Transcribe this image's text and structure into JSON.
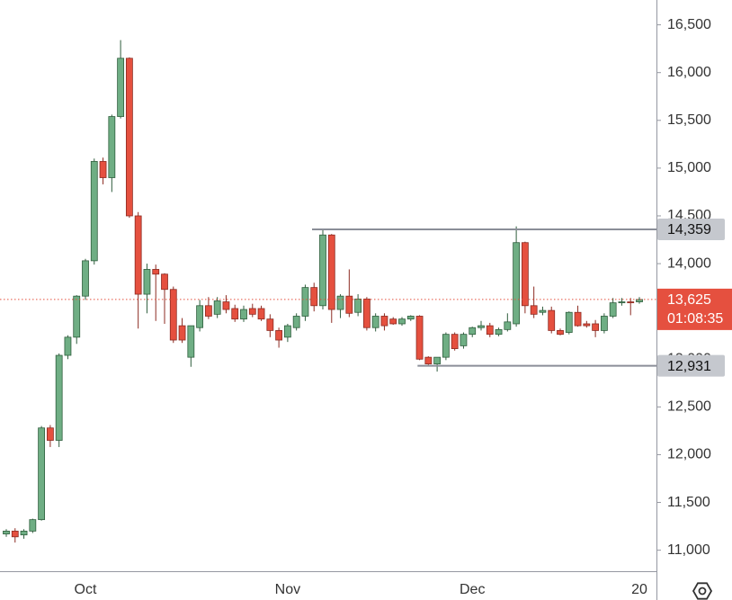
{
  "chart_data": {
    "type": "candlestick",
    "categories": [
      null,
      null,
      null,
      null,
      null,
      null,
      null,
      null,
      null,
      "Oct",
      null,
      null,
      null,
      null,
      null,
      null,
      null,
      null,
      null,
      null,
      null,
      null,
      null,
      null,
      null,
      null,
      null,
      null,
      null,
      null,
      null,
      null,
      "Nov",
      null,
      null,
      null,
      null,
      null,
      null,
      null,
      null,
      null,
      null,
      null,
      null,
      null,
      null,
      null,
      null,
      null,
      null,
      null,
      null,
      "Dec",
      null,
      null,
      null,
      null,
      null,
      null,
      null,
      null,
      null,
      null,
      null,
      null,
      null,
      null,
      null,
      null,
      null,
      null,
      "20"
    ],
    "open": [
      11170,
      11200,
      11160,
      11200,
      11320,
      12280,
      12150,
      13040,
      13230,
      13660,
      14030,
      15070,
      14900,
      15540,
      16150,
      14500,
      13680,
      13940,
      13890,
      13730,
      13350,
      13020,
      13330,
      13560,
      13470,
      13600,
      13530,
      13420,
      13530,
      13530,
      13420,
      13300,
      13230,
      13330,
      13450,
      13750,
      13560,
      14300,
      13520,
      13660,
      13490,
      13630,
      13330,
      13450,
      13420,
      13370,
      13420,
      13450,
      13020,
      12950,
      13020,
      13260,
      13140,
      13260,
      13330,
      13350,
      13260,
      13310,
      13370,
      14220,
      13560,
      13490,
      13510,
      13300,
      13280,
      13490,
      13370,
      13370,
      13300,
      13450,
      13590,
      13600,
      13600
    ],
    "high": [
      11220,
      11230,
      11220,
      11330,
      12300,
      12310,
      13060,
      13250,
      13670,
      14050,
      15100,
      15110,
      15560,
      16340,
      16160,
      14540,
      14000,
      13990,
      13900,
      13760,
      13430,
      13350,
      13620,
      13650,
      13650,
      13670,
      13570,
      13560,
      13580,
      13560,
      13470,
      13330,
      13370,
      13480,
      13780,
      13800,
      14360,
      14310,
      13680,
      13940,
      13680,
      13650,
      13480,
      13480,
      13440,
      13440,
      13460,
      13460,
      13030,
      13020,
      13280,
      13280,
      13280,
      13340,
      13400,
      13380,
      13330,
      13480,
      14390,
      14230,
      13760,
      13550,
      13550,
      13320,
      13500,
      13560,
      13400,
      13410,
      13480,
      13640,
      13640,
      13640,
      13650
    ],
    "low": [
      11140,
      11080,
      11120,
      11180,
      11310,
      12080,
      12080,
      13000,
      13160,
      13620,
      13990,
      14830,
      14750,
      15520,
      14480,
      13320,
      13480,
      13400,
      13370,
      13170,
      13170,
      12920,
      13290,
      13420,
      13430,
      13480,
      13390,
      13390,
      13440,
      13400,
      13230,
      13120,
      13180,
      13300,
      13400,
      13500,
      13520,
      13380,
      13430,
      13440,
      13450,
      13300,
      13290,
      13300,
      13360,
      13350,
      13400,
      12990,
      12940,
      12870,
      12990,
      13090,
      13110,
      13230,
      13300,
      13230,
      13240,
      13290,
      13340,
      13480,
      13430,
      13460,
      13270,
      13250,
      13260,
      13340,
      13330,
      13230,
      13270,
      13430,
      13560,
      13460,
      13580
    ],
    "close": [
      11200,
      11140,
      11200,
      11320,
      12280,
      12150,
      13040,
      13230,
      13660,
      14030,
      15070,
      14900,
      15540,
      16150,
      14500,
      13680,
      13940,
      13890,
      13730,
      13200,
      13200,
      13350,
      13560,
      13450,
      13610,
      13520,
      13420,
      13520,
      13470,
      13420,
      13300,
      13200,
      13350,
      13450,
      13750,
      13560,
      14300,
      13520,
      13660,
      13480,
      13630,
      13330,
      13450,
      13350,
      13370,
      13420,
      13450,
      13000,
      12950,
      13020,
      13260,
      13110,
      13260,
      13330,
      13350,
      13260,
      13310,
      13390,
      14220,
      13560,
      13470,
      13510,
      13300,
      13260,
      13490,
      13350,
      13350,
      13300,
      13450,
      13590,
      13600,
      13590,
      13625
    ],
    "up_color": "#6fae84",
    "down_color": "#e5503f",
    "ylim": [
      10780,
      16760
    ],
    "yticks": [
      {
        "value": 11000,
        "label": "11,000"
      },
      {
        "value": 11500,
        "label": "11,500"
      },
      {
        "value": 12000,
        "label": "12,000"
      },
      {
        "value": 12500,
        "label": "12,500"
      },
      {
        "value": 13000,
        "label": "13,000"
      },
      {
        "value": 13500,
        "label": "13,500"
      },
      {
        "value": 14000,
        "label": "14,000"
      },
      {
        "value": 14500,
        "label": "14,500"
      },
      {
        "value": 15000,
        "label": "15,000"
      },
      {
        "value": 15500,
        "label": "15,500"
      },
      {
        "value": 16000,
        "label": "16,000"
      },
      {
        "value": 16500,
        "label": "16,500"
      }
    ],
    "levels": [
      {
        "value": 14359,
        "label": "14,359"
      },
      {
        "value": 12931,
        "label": "12,931"
      }
    ],
    "last_price": {
      "value": 13625,
      "label": "13,625"
    },
    "countdown": "01:08:35"
  }
}
